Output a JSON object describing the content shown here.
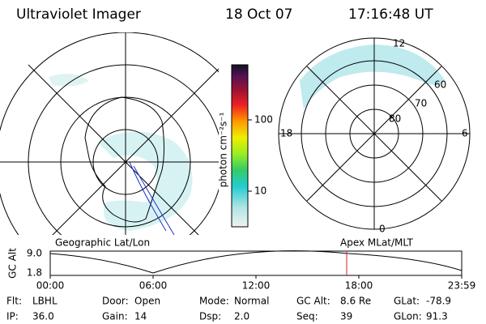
{
  "header": {
    "title": "Ultraviolet Imager",
    "date": "18 Oct 07",
    "time": "17:16:48 UT"
  },
  "colorbar": {
    "label": "photon cm⁻²s⁻¹",
    "ticks": [
      "100",
      "10"
    ]
  },
  "geo_panel": {
    "label": "Geographic Lat/Lon"
  },
  "mag_panel": {
    "label": "Apex MLat/MLT",
    "mlt": [
      "12",
      "18",
      "6",
      "0"
    ],
    "mlat": [
      "60",
      "70",
      "80"
    ]
  },
  "orbit": {
    "ylabel": "GC Alt",
    "yticks": [
      "9.0",
      "1.8"
    ],
    "xticks": [
      "00:00",
      "06:00",
      "12:00",
      "18:00",
      "23:59"
    ]
  },
  "footer": [
    [
      {
        "label": "Flt:",
        "value": "LBHL"
      },
      {
        "label": "Door:",
        "value": "Open"
      },
      {
        "label": "Mode:",
        "value": "Normal"
      },
      {
        "label": "GC Alt:",
        "value": "8.6 Re"
      },
      {
        "label": "GLat:",
        "value": "-78.9"
      }
    ],
    [
      {
        "label": "IP:",
        "value": "36.0"
      },
      {
        "label": "Gain:",
        "value": "14"
      },
      {
        "label": "Dsp:",
        "value": "2.0"
      },
      {
        "label": "Seq:",
        "value": "39"
      },
      {
        "label": "GLon:",
        "value": "91.3"
      }
    ]
  ]
}
